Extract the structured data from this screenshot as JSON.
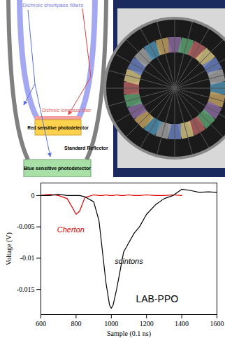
{
  "diagram": {
    "shortpass_label": "Dichroic shortpass filters",
    "longpass_label": "Dichroic longpass filter",
    "red_detector": "Red sensitive photodetector",
    "reflector": "Standard Reflector",
    "blue_detector": "Blue sensitive photodetector"
  },
  "chart_data": {
    "type": "line",
    "x_label": "Sample (0.1 ns)",
    "y_label": "Voltage (V)",
    "xlim": [
      600,
      1600
    ],
    "ylim": [
      -0.019,
      0.002
    ],
    "xticks": [
      600,
      800,
      1000,
      1200,
      1400,
      1600
    ],
    "yticks": [
      -0.015,
      -0.01,
      -0.005,
      0
    ],
    "x": [
      600,
      650,
      700,
      750,
      780,
      800,
      820,
      850,
      900,
      930,
      950,
      970,
      990,
      1000,
      1010,
      1030,
      1050,
      1070,
      1100,
      1130,
      1160,
      1200,
      1250,
      1300,
      1350,
      1400,
      1450,
      1500,
      1550,
      1600
    ],
    "series": [
      {
        "color": "#e00000",
        "values": [
          0,
          0.0002,
          0,
          -0.0005,
          -0.002,
          -0.003,
          -0.0025,
          -0.0003,
          0.0001,
          0,
          0,
          0.0001,
          0,
          0,
          0,
          0.0001,
          0,
          0,
          0.0001,
          0,
          0,
          0.0001,
          0,
          0,
          0.0001,
          0,
          null,
          null,
          null,
          null
        ]
      },
      {
        "color": "#000000",
        "values": [
          0,
          0,
          0.0002,
          0,
          0,
          0,
          0,
          -0.0002,
          -0.001,
          -0.004,
          -0.009,
          -0.014,
          -0.0175,
          -0.018,
          -0.0175,
          -0.015,
          -0.012,
          -0.009,
          -0.0075,
          -0.006,
          -0.005,
          -0.003,
          -0.0015,
          -0.0005,
          0,
          0.001,
          0.0008,
          0.0005,
          0.0006,
          0.0005
        ]
      }
    ],
    "annotations": [
      {
        "text": "Cherton",
        "x": 770,
        "y": -0.0055,
        "color": "#e00000"
      },
      {
        "text": "scintons",
        "x": 1100,
        "y": -0.0105,
        "color": "#000000"
      },
      {
        "text": "LAB-PPO",
        "x": 1260,
        "y": -0.0165,
        "color": "#000000"
      }
    ]
  }
}
